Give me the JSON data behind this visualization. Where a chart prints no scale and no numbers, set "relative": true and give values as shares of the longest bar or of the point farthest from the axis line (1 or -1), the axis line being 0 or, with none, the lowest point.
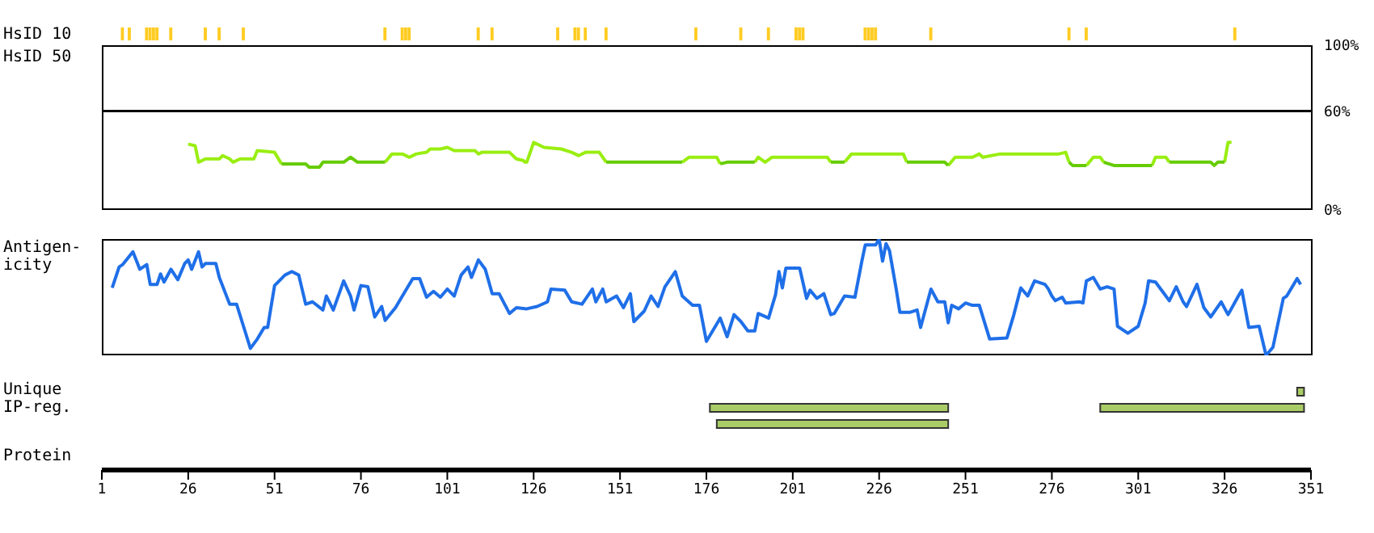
{
  "chart_data": [
    {
      "type": "bar",
      "title": "HsID 10",
      "relative": true,
      "tick_labels": false,
      "xlim": [
        1,
        351
      ],
      "x": [
        7,
        9,
        14,
        15,
        16,
        17,
        21,
        31,
        35,
        42,
        83,
        88,
        89,
        90,
        110,
        114,
        133,
        138,
        139,
        141,
        147,
        173,
        186,
        194,
        202,
        203,
        204,
        222,
        223,
        224,
        225,
        241,
        281,
        286,
        329
      ],
      "series": [
        {
          "color": "#ffcc22",
          "values": [
            1,
            1,
            1,
            1,
            1,
            1,
            1,
            1,
            1,
            1,
            1,
            1,
            1,
            1,
            1,
            1,
            1,
            1,
            1,
            1,
            1,
            1,
            1,
            1,
            1,
            1,
            1,
            1,
            1,
            1,
            1,
            1,
            1,
            1,
            1
          ]
        }
      ]
    },
    {
      "type": "line",
      "title": "HsID 50",
      "tick_labels": "y",
      "xlim": [
        1,
        351
      ],
      "ylim": [
        0,
        100
      ],
      "yticks": [
        {
          "value": 0,
          "label": "0%"
        },
        {
          "value": 60,
          "label": "60%"
        },
        {
          "value": 100,
          "label": "100%"
        }
      ],
      "ref_lines": [
        {
          "axis": "y",
          "value": 60,
          "color": "#000000"
        }
      ],
      "series": [
        {
          "color": "#99ee11",
          "x": [
            26,
            28,
            29,
            31,
            35,
            36,
            38,
            39,
            41,
            45,
            46,
            51,
            53,
            62,
            71,
            73,
            75,
            79,
            83,
            85,
            88,
            90,
            92,
            95,
            96,
            99,
            101,
            103,
            109,
            110,
            111,
            119,
            121,
            123,
            123.5,
            124,
            126,
            129,
            134,
            137,
            139,
            141,
            145,
            147,
            160,
            169,
            171,
            179,
            180,
            185,
            190,
            191,
            193,
            195,
            211,
            212,
            214,
            216,
            218,
            233,
            234,
            240,
            246,
            248,
            253,
            255,
            256,
            261,
            278,
            280,
            281,
            284,
            286,
            288,
            290,
            291,
            300,
            305,
            306,
            309,
            310,
            318,
            326,
            327,
            328
          ],
          "values": [
            40,
            39,
            29,
            31,
            31,
            33,
            31,
            29,
            31,
            31,
            36,
            35,
            28,
            null,
            null,
            null,
            null,
            null,
            29,
            34,
            34,
            32,
            34,
            35,
            37,
            37,
            38,
            36,
            36,
            34,
            35,
            35,
            31,
            30,
            29,
            29,
            41,
            38,
            37,
            35,
            33,
            35,
            35,
            29,
            null,
            29,
            32,
            32,
            28,
            null,
            29,
            32,
            29,
            32,
            32,
            29,
            null,
            29,
            34,
            34,
            29,
            null,
            27,
            32,
            32,
            34,
            32,
            34,
            34,
            35,
            29,
            null,
            27,
            32,
            32,
            29,
            null,
            27,
            32,
            32,
            29,
            null,
            29,
            41,
            41
          ]
        },
        {
          "color": "#66cc00",
          "x": [
            53,
            60,
            61,
            64,
            65,
            71,
            73,
            75,
            83,
            100,
            123,
            124,
            135,
            147,
            169,
            175,
            180,
            182,
            190,
            200,
            212,
            216,
            225,
            234,
            245,
            246,
            260,
            281,
            282,
            286,
            288,
            291,
            294,
            305,
            308,
            310,
            322,
            323,
            324,
            326
          ],
          "values": [
            28,
            28,
            26,
            26,
            29,
            29,
            32,
            29,
            29,
            null,
            null,
            null,
            null,
            29,
            29,
            null,
            28,
            29,
            29,
            null,
            29,
            29,
            null,
            29,
            29,
            27,
            null,
            29,
            27,
            27,
            null,
            29,
            27,
            27,
            null,
            29,
            29,
            27,
            29,
            29
          ]
        }
      ]
    },
    {
      "type": "line",
      "title": "Antigen-icity",
      "relative": true,
      "tick_labels": false,
      "xlim": [
        1,
        351
      ],
      "series": [
        {
          "color": "#1f6fe8",
          "x": [
            4,
            6,
            7,
            10,
            12,
            14,
            15,
            17,
            18,
            19,
            21,
            23,
            25,
            26,
            27,
            29,
            30,
            31,
            34,
            35,
            38,
            40,
            42,
            44,
            46,
            48,
            49,
            51,
            54,
            56,
            58,
            60,
            62,
            65,
            66,
            68,
            71,
            73,
            74,
            76,
            78,
            80,
            82,
            83,
            86,
            88,
            91,
            93,
            95,
            97,
            99,
            101,
            103,
            105,
            107,
            108,
            110,
            112,
            114,
            116,
            119,
            121,
            124,
            127,
            130,
            131,
            135,
            137,
            140,
            143,
            144,
            146,
            147,
            150,
            152,
            154,
            155,
            158,
            160,
            162,
            164,
            167,
            169,
            172,
            174,
            176,
            180,
            182,
            184,
            186,
            188,
            190,
            191,
            194,
            196,
            197,
            198,
            199,
            203,
            205,
            206,
            208,
            210,
            212,
            213,
            216,
            219,
            221,
            222,
            225,
            226,
            227,
            228,
            229,
            231,
            232,
            235,
            237,
            238,
            241,
            243,
            245,
            246,
            247,
            249,
            251,
            253,
            255,
            258,
            263,
            265,
            267,
            269,
            271,
            274,
            275,
            276,
            277,
            279,
            280,
            284,
            285,
            286,
            288,
            290,
            292,
            294,
            295,
            298,
            301,
            303,
            304,
            306,
            308,
            310,
            312,
            314,
            315,
            318,
            320,
            322,
            325,
            327,
            330,
            331,
            333,
            336,
            338,
            340,
            343,
            344,
            347,
            348
          ],
          "values": [
            0.58,
            0.76,
            0.78,
            0.89,
            0.74,
            0.78,
            0.61,
            0.61,
            0.7,
            0.63,
            0.74,
            0.65,
            0.79,
            0.82,
            0.74,
            0.89,
            0.76,
            0.79,
            0.79,
            0.67,
            0.44,
            0.44,
            0.25,
            0.06,
            0.14,
            0.24,
            0.24,
            0.6,
            0.69,
            0.72,
            0.69,
            0.44,
            0.46,
            0.39,
            0.51,
            0.39,
            0.64,
            0.51,
            0.39,
            0.6,
            0.59,
            0.33,
            0.42,
            0.3,
            0.41,
            0.51,
            0.66,
            0.66,
            0.5,
            0.55,
            0.5,
            0.57,
            0.51,
            0.69,
            0.76,
            0.67,
            0.82,
            0.74,
            0.53,
            0.53,
            0.36,
            0.41,
            0.4,
            0.42,
            0.46,
            0.57,
            0.56,
            0.46,
            0.44,
            0.57,
            0.46,
            0.57,
            0.46,
            0.51,
            0.41,
            0.53,
            0.29,
            0.38,
            0.51,
            0.42,
            0.59,
            0.72,
            0.51,
            0.43,
            0.43,
            0.12,
            0.32,
            0.16,
            0.35,
            0.29,
            0.21,
            0.21,
            0.36,
            0.32,
            0.52,
            0.72,
            0.58,
            0.75,
            0.75,
            0.49,
            0.56,
            0.49,
            0.53,
            0.35,
            0.36,
            0.51,
            0.5,
            0.81,
            0.95,
            0.95,
            1,
            0.81,
            0.96,
            0.9,
            0.56,
            0.37,
            0.37,
            0.39,
            0.24,
            0.57,
            0.46,
            0.46,
            0.28,
            0.43,
            0.4,
            0.45,
            0.43,
            0.43,
            0.14,
            0.15,
            0.35,
            0.58,
            0.51,
            0.64,
            0.61,
            0.57,
            0.51,
            0.47,
            0.5,
            0.45,
            0.46,
            0.45,
            0.64,
            0.67,
            0.57,
            0.59,
            0.57,
            0.25,
            0.19,
            0.25,
            0.45,
            0.64,
            0.63,
            0.55,
            0.47,
            0.59,
            0.46,
            0.42,
            0.61,
            0.41,
            0.33,
            0.46,
            0.35,
            0.51,
            0.56,
            0.24,
            0.25,
            0,
            0.07,
            0.49,
            0.51,
            0.66,
            0.61
          ]
        }
      ]
    },
    {
      "type": "bar",
      "title": "Unique IP-reg.",
      "orientation": "horizontal",
      "xlabel": "Protein",
      "tick_labels": "x",
      "xlim": [
        1,
        351
      ],
      "xticks": [
        1,
        26,
        51,
        76,
        101,
        126,
        151,
        176,
        201,
        226,
        251,
        276,
        301,
        326,
        351
      ],
      "categories": [
        null
      ],
      "series": [
        {
          "color": "#aacc66",
          "base": [
            347
          ],
          "values": [
            2
          ]
        },
        {
          "color": "#aacc66",
          "base": [
            177
          ],
          "values": [
            69
          ]
        },
        {
          "color": "#aacc66",
          "base": [
            290
          ],
          "values": [
            59
          ]
        },
        {
          "color": "#aacc66",
          "base": [
            179
          ],
          "values": [
            67
          ]
        }
      ]
    }
  ]
}
